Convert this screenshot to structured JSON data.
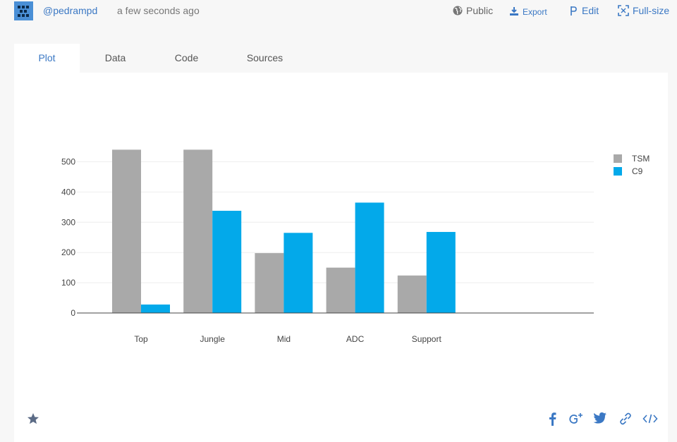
{
  "header": {
    "username": "@pedrampd",
    "timestamp": "a few seconds ago",
    "public_label": "Public",
    "export_label": "Export",
    "edit_label": "Edit",
    "fullsize_label": "Full-size"
  },
  "tabs": [
    {
      "label": "Plot",
      "active": true
    },
    {
      "label": "Data",
      "active": false
    },
    {
      "label": "Code",
      "active": false
    },
    {
      "label": "Sources",
      "active": false
    }
  ],
  "colors": {
    "accent": "#3b78c4",
    "tsm": "#a9a9a9",
    "c9": "#03a9ea"
  },
  "chart_data": {
    "type": "bar",
    "categories": [
      "Top",
      "Jungle",
      "Mid",
      "ADC",
      "Support"
    ],
    "series": [
      {
        "name": "TSM",
        "values": [
          540,
          540,
          198,
          150,
          124
        ],
        "color": "#a9a9a9"
      },
      {
        "name": "C9",
        "values": [
          28,
          338,
          265,
          365,
          268
        ],
        "color": "#03a9ea"
      }
    ],
    "ylim": [
      0,
      550
    ],
    "yticks": [
      0,
      100,
      200,
      300,
      400,
      500
    ],
    "grid": true,
    "legend_position": "top-right",
    "title": "",
    "xlabel": "",
    "ylabel": ""
  },
  "footer": {
    "icons": [
      "star-icon",
      "facebook-icon",
      "google-plus-icon",
      "twitter-icon",
      "link-icon",
      "embed-code-icon"
    ]
  }
}
